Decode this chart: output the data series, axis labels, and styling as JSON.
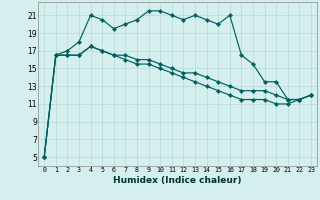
{
  "xlabel": "Humidex (Indice chaleur)",
  "background_color": "#d5eeee",
  "grid_color": "#b8d8d8",
  "line_color": "#006060",
  "xlim": [
    -0.5,
    23.5
  ],
  "ylim": [
    4,
    22.5
  ],
  "yticks": [
    5,
    7,
    9,
    11,
    13,
    15,
    17,
    19,
    21
  ],
  "xticks": [
    0,
    1,
    2,
    3,
    4,
    5,
    6,
    7,
    8,
    9,
    10,
    11,
    12,
    13,
    14,
    15,
    16,
    17,
    18,
    19,
    20,
    21,
    22,
    23
  ],
  "series": {
    "upper": [
      5,
      16.5,
      17.0,
      18.0,
      21.0,
      20.5,
      19.5,
      20.0,
      20.5,
      21.5,
      21.5,
      21.0,
      20.5,
      21.0,
      20.5,
      20.0,
      21.0,
      16.5,
      15.5,
      13.5,
      13.5,
      11.5,
      11.5,
      12.0
    ],
    "lower1": [
      5,
      16.5,
      16.5,
      16.5,
      17.5,
      17.0,
      16.5,
      16.5,
      16.0,
      16.0,
      15.5,
      15.0,
      14.5,
      14.5,
      14.0,
      13.5,
      13.0,
      12.5,
      12.5,
      12.5,
      12.0,
      11.5,
      11.5,
      12.0
    ],
    "lower2": [
      5,
      16.5,
      16.5,
      16.5,
      17.5,
      17.0,
      16.5,
      16.0,
      15.5,
      15.5,
      15.0,
      14.5,
      14.0,
      13.5,
      13.0,
      12.5,
      12.0,
      11.5,
      11.5,
      11.5,
      11.0,
      11.0,
      11.5,
      12.0
    ]
  }
}
